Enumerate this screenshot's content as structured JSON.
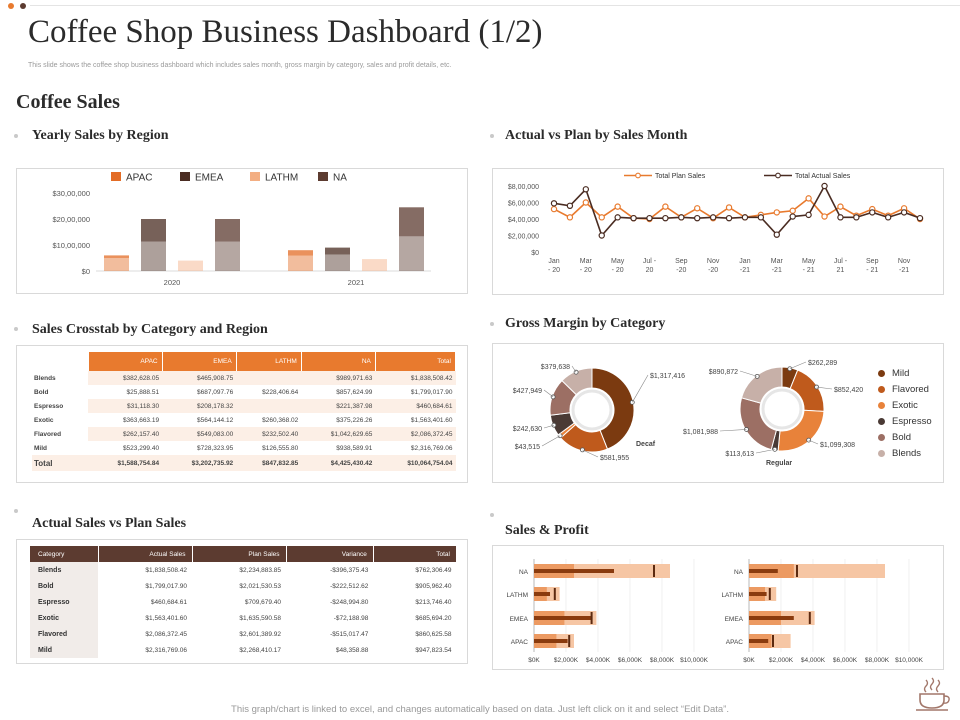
{
  "header": {
    "title": "Coffee Shop Business Dashboard (1/2)",
    "subtitle": "This slide shows the coffee shop business dashboard which includes sales month, gross margin by category, sales and profit details, etc.",
    "section_title": "Coffee Sales"
  },
  "panels": {
    "yearly": "Yearly Sales by Region",
    "actual_plan_month": "Actual vs Plan by Sales Month",
    "crosstab": "Sales Crosstab by Category and Region",
    "gross_margin": "Gross Margin by Category",
    "actual_vs_plan": "Actual Sales vs Plan Sales",
    "sales_profit": "Sales & Profit"
  },
  "footer": "This graph/chart is linked to excel, and changes automatically based on data. Just left click on it and select “Edit Data”.",
  "colors": {
    "apac": "#e36c26",
    "emea": "#4a2c22",
    "lathm": "#f3ae82",
    "na": "#5c3b30",
    "plan_line": "#e87a2e",
    "actual_line": "#4a2c22",
    "table_head_orange": "#e87a2e",
    "table_head_brown": "#5c3b30"
  },
  "crosstab": {
    "headers": [
      "",
      "APAC",
      "EMEA",
      "LATHM",
      "NA",
      "Total"
    ],
    "rows": [
      [
        "Blends",
        "$382,628.05",
        "$465,908.75",
        "",
        "$989,971.63",
        "$1,838,508.42"
      ],
      [
        "Bold",
        "$25,888.51",
        "$687,097.76",
        "$228,406.64",
        "$857,624.99",
        "$1,799,017.90"
      ],
      [
        "Espresso",
        "$31,118.30",
        "$208,178.32",
        "",
        "$221,387.98",
        "$460,684.61"
      ],
      [
        "Exotic",
        "$363,663.19",
        "$564,144.12",
        "$260,368.02",
        "$375,226.26",
        "$1,563,401.60"
      ],
      [
        "Flavored",
        "$262,157.40",
        "$549,083.00",
        "$232,502.40",
        "$1,042,629.65",
        "$2,086,372.45"
      ],
      [
        "Mild",
        "$523,299.40",
        "$728,323.95",
        "$126,555.80",
        "$938,589.91",
        "$2,316,769.06"
      ]
    ],
    "total": [
      "Total",
      "$1,588,754.84",
      "$3,202,735.92",
      "$847,832.85",
      "$4,425,430.42",
      "$10,064,754.04"
    ]
  },
  "plan_table": {
    "headers": [
      "Category",
      "Actual Sales",
      "Plan Sales",
      "Variance",
      "Total"
    ],
    "rows": [
      [
        "Blends",
        "$1,838,508.42",
        "$2,234,883.85",
        "-$396,375.43",
        "$762,306.49"
      ],
      [
        "Bold",
        "$1,799,017.90",
        "$2,021,530.53",
        "-$222,512.62",
        "$905,962.40"
      ],
      [
        "Espresso",
        "$460,684.61",
        "$709,679.40",
        "-$248,994.80",
        "$213,746.40"
      ],
      [
        "Exotic",
        "$1,563,401.60",
        "$1,635,590.58",
        "-$72,188.98",
        "$685,694.20"
      ],
      [
        "Flavored",
        "$2,086,372.45",
        "$2,601,389.92",
        "-$515,017.47",
        "$860,625.58"
      ],
      [
        "Mild",
        "$2,316,769.06",
        "$2,268,410.17",
        "$48,358.88",
        "$947,823.54"
      ]
    ]
  },
  "chart_data": [
    {
      "id": "yearly",
      "type": "bar",
      "title": "Yearly Sales by Region",
      "groups": [
        "2020",
        "2021"
      ],
      "series": [
        {
          "name": "APAC",
          "values": [
            6000000,
            8000000
          ],
          "color": "#e36c26"
        },
        {
          "name": "EMEA",
          "values": [
            20000000,
            9000000
          ],
          "color": "#4a2c22"
        },
        {
          "name": "LATHM",
          "values": [
            4000000,
            4500000
          ],
          "color": "#f3ae82"
        },
        {
          "name": "NA",
          "values": [
            20000000,
            24500000
          ],
          "color": "#5c3b30"
        }
      ],
      "y_ticks": [
        "$0",
        "$10,00,000",
        "$20,00,000",
        "$30,00,000"
      ],
      "ylim": [
        0,
        30000000
      ],
      "legend": "top"
    },
    {
      "id": "monthly",
      "type": "line",
      "title": "Actual vs Plan by Sales Month",
      "x": [
        "Jan - 20",
        "Feb - 20",
        "Mar - 20",
        "Apr - 20",
        "May - 20",
        "Jun - 20",
        "Jul - 20",
        "Aug - 20",
        "Sep - 20",
        "Oct - 20",
        "Nov - 20",
        "Dec - 20",
        "Jan - 21",
        "Feb - 21",
        "Mar - 21",
        "Apr - 21",
        "May - 21",
        "Jun - 21",
        "Jul - 21",
        "Aug - 21",
        "Sep - 21",
        "Oct - 21",
        "Nov - 21",
        "Dec - 21"
      ],
      "x_tick_labels": [
        [
          "Jan",
          "- 20"
        ],
        [
          "Mar",
          "- 20"
        ],
        [
          "May",
          "- 20"
        ],
        [
          "Jul -",
          "20"
        ],
        [
          "Sep",
          "-20"
        ],
        [
          "Nov",
          "-20"
        ],
        [
          "Jan",
          "-21"
        ],
        [
          "Mar",
          "-21"
        ],
        [
          "May",
          "- 21"
        ],
        [
          "Jul -",
          "21"
        ],
        [
          "Sep",
          "- 21"
        ],
        [
          "Nov",
          "-21"
        ]
      ],
      "series": [
        {
          "name": "Total Plan Sales",
          "color": "#e87a2e",
          "values": [
            520000,
            420000,
            600000,
            420000,
            550000,
            410000,
            400000,
            550000,
            420000,
            530000,
            410000,
            540000,
            420000,
            450000,
            480000,
            500000,
            650000,
            430000,
            550000,
            440000,
            520000,
            440000,
            530000,
            400000
          ]
        },
        {
          "name": "Total Actual Sales",
          "color": "#4a2c22",
          "values": [
            590000,
            560000,
            760000,
            200000,
            420000,
            410000,
            410000,
            410000,
            420000,
            410000,
            420000,
            410000,
            420000,
            420000,
            210000,
            430000,
            450000,
            800000,
            420000,
            420000,
            480000,
            420000,
            480000,
            410000
          ]
        }
      ],
      "y_ticks": [
        "$0",
        "$2,00,000",
        "$4,00,000",
        "$6,00,000",
        "$8,00,000"
      ],
      "ylim": [
        0,
        800000
      ],
      "legend": "top"
    },
    {
      "id": "margin",
      "type": "pie",
      "title": "Gross Margin by Category",
      "categories": [
        "Mild",
        "Flavored",
        "Exotic",
        "Espresso",
        "Bold",
        "Blends"
      ],
      "colors": [
        "#7b3a10",
        "#bf5a1c",
        "#e8823a",
        "#4a3a35",
        "#9c6f64",
        "#c7b0a8"
      ],
      "donuts": [
        {
          "name": "Decaf",
          "values": [
            1317416,
            581955,
            43515,
            242630,
            427949,
            379638
          ],
          "labels": [
            "$1,317,416",
            "$581,955",
            "$43,515",
            "$242,630",
            "$427,949",
            "$379,638"
          ]
        },
        {
          "name": "Regular",
          "values": [
            262289,
            852420,
            1099308,
            113613,
            1081988,
            890872
          ],
          "labels": [
            "$262,289",
            "$852,420",
            "$1,099,308",
            "$113,613",
            "$1,081,988",
            "$890,872"
          ]
        }
      ],
      "legend": "right"
    },
    {
      "id": "sales_profit",
      "type": "bar",
      "title": "Sales & Profit",
      "categories": [
        "NA",
        "LATHM",
        "EMEA",
        "APAC"
      ],
      "x_ticks": [
        "$0K",
        "$2,000K",
        "$4,000K",
        "$6,000K",
        "$8,000K",
        "$10,000K"
      ],
      "xlim": [
        0,
        10000
      ],
      "panels": [
        {
          "sales": [
            8500,
            1600,
            3900,
            2500
          ],
          "mid": [
            2500,
            800,
            1900,
            1400
          ],
          "profit": [
            5000,
            1000,
            3600,
            2100
          ],
          "target": [
            7500,
            1300,
            3600,
            2200
          ]
        },
        {
          "sales": [
            8500,
            1700,
            4100,
            2600
          ],
          "mid": [
            2800,
            1000,
            2000,
            1400
          ],
          "profit": [
            1800,
            1100,
            2800,
            1200
          ],
          "target": [
            3000,
            1300,
            3800,
            1500
          ]
        }
      ]
    }
  ]
}
